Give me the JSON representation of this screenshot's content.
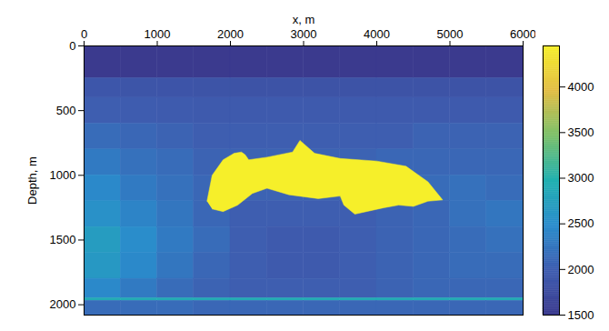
{
  "chart_data": {
    "type": "heatmap",
    "x_label": "x, m",
    "y_label": "Depth, m",
    "xlim": [
      0,
      6000
    ],
    "xticks": [
      0,
      1000,
      2000,
      3000,
      4000,
      5000,
      6000
    ],
    "ylim": [
      0,
      2080
    ],
    "yticks": [
      0,
      500,
      1000,
      1500,
      2000
    ],
    "cells": {
      "x_edges": [
        0,
        500,
        1000,
        1500,
        2000,
        2500,
        3000,
        3500,
        4000,
        4500,
        5000,
        5500,
        6000
      ],
      "y_edges": [
        0,
        250,
        400,
        600,
        800,
        1000,
        1200,
        1400,
        1600,
        1800,
        1950,
        1970,
        2080
      ],
      "values": [
        [
          1500,
          1500,
          1500,
          1500,
          1500,
          1500,
          1500,
          1500,
          1500,
          1500,
          1500,
          1500
        ],
        [
          1900,
          1880,
          1870,
          1860,
          1850,
          1850,
          1850,
          1850,
          1850,
          1850,
          1850,
          1850
        ],
        [
          2000,
          1980,
          1960,
          1950,
          1950,
          1950,
          1950,
          1950,
          1950,
          1950,
          1950,
          1950
        ],
        [
          2150,
          2100,
          2050,
          2000,
          2000,
          2000,
          2000,
          2000,
          2000,
          2050,
          2050,
          2050
        ],
        [
          2300,
          2200,
          2150,
          2050,
          2050,
          2050,
          2050,
          2050,
          2100,
          2100,
          2100,
          2100
        ],
        [
          2450,
          2300,
          2200,
          2100,
          2050,
          2050,
          2050,
          2050,
          2100,
          2150,
          2200,
          2150
        ],
        [
          2550,
          2400,
          2250,
          2100,
          2000,
          2000,
          2000,
          2000,
          2050,
          2100,
          2200,
          2250
        ],
        [
          2700,
          2500,
          2300,
          2150,
          2000,
          1950,
          1950,
          2000,
          2050,
          2100,
          2150,
          2200
        ],
        [
          2650,
          2450,
          2250,
          2100,
          2000,
          1950,
          1950,
          2000,
          2050,
          2100,
          2150,
          2150
        ],
        [
          2450,
          2300,
          2150,
          2050,
          2000,
          2000,
          2000,
          2000,
          2050,
          2100,
          2100,
          2100
        ],
        [
          2900,
          2900,
          2900,
          2900,
          2900,
          2900,
          2900,
          2900,
          2900,
          2900,
          2900,
          2900
        ],
        [
          2150,
          2150,
          2150,
          2100,
          2100,
          2100,
          2100,
          2100,
          2100,
          2100,
          2100,
          2100
        ]
      ]
    },
    "regions": [
      {
        "value": 4450,
        "x": [
          1680,
          1750,
          1900,
          2050,
          2150,
          2200,
          2250,
          2500,
          2850,
          2950,
          3150,
          3500,
          4000,
          4400,
          4700,
          4900,
          4700,
          4500,
          4300,
          4100,
          3700,
          3550,
          3500,
          3200,
          2800,
          2500,
          2300,
          2100,
          1900,
          1750
        ],
        "y": [
          1200,
          1000,
          880,
          830,
          820,
          840,
          880,
          860,
          820,
          730,
          830,
          870,
          890,
          930,
          1050,
          1190,
          1200,
          1240,
          1230,
          1250,
          1300,
          1230,
          1160,
          1180,
          1150,
          1100,
          1140,
          1230,
          1280,
          1260
        ]
      }
    ],
    "colorbar": {
      "range": [
        1500,
        4450
      ],
      "ticks": [
        1500,
        2000,
        2500,
        3000,
        3500,
        4000
      ]
    }
  }
}
